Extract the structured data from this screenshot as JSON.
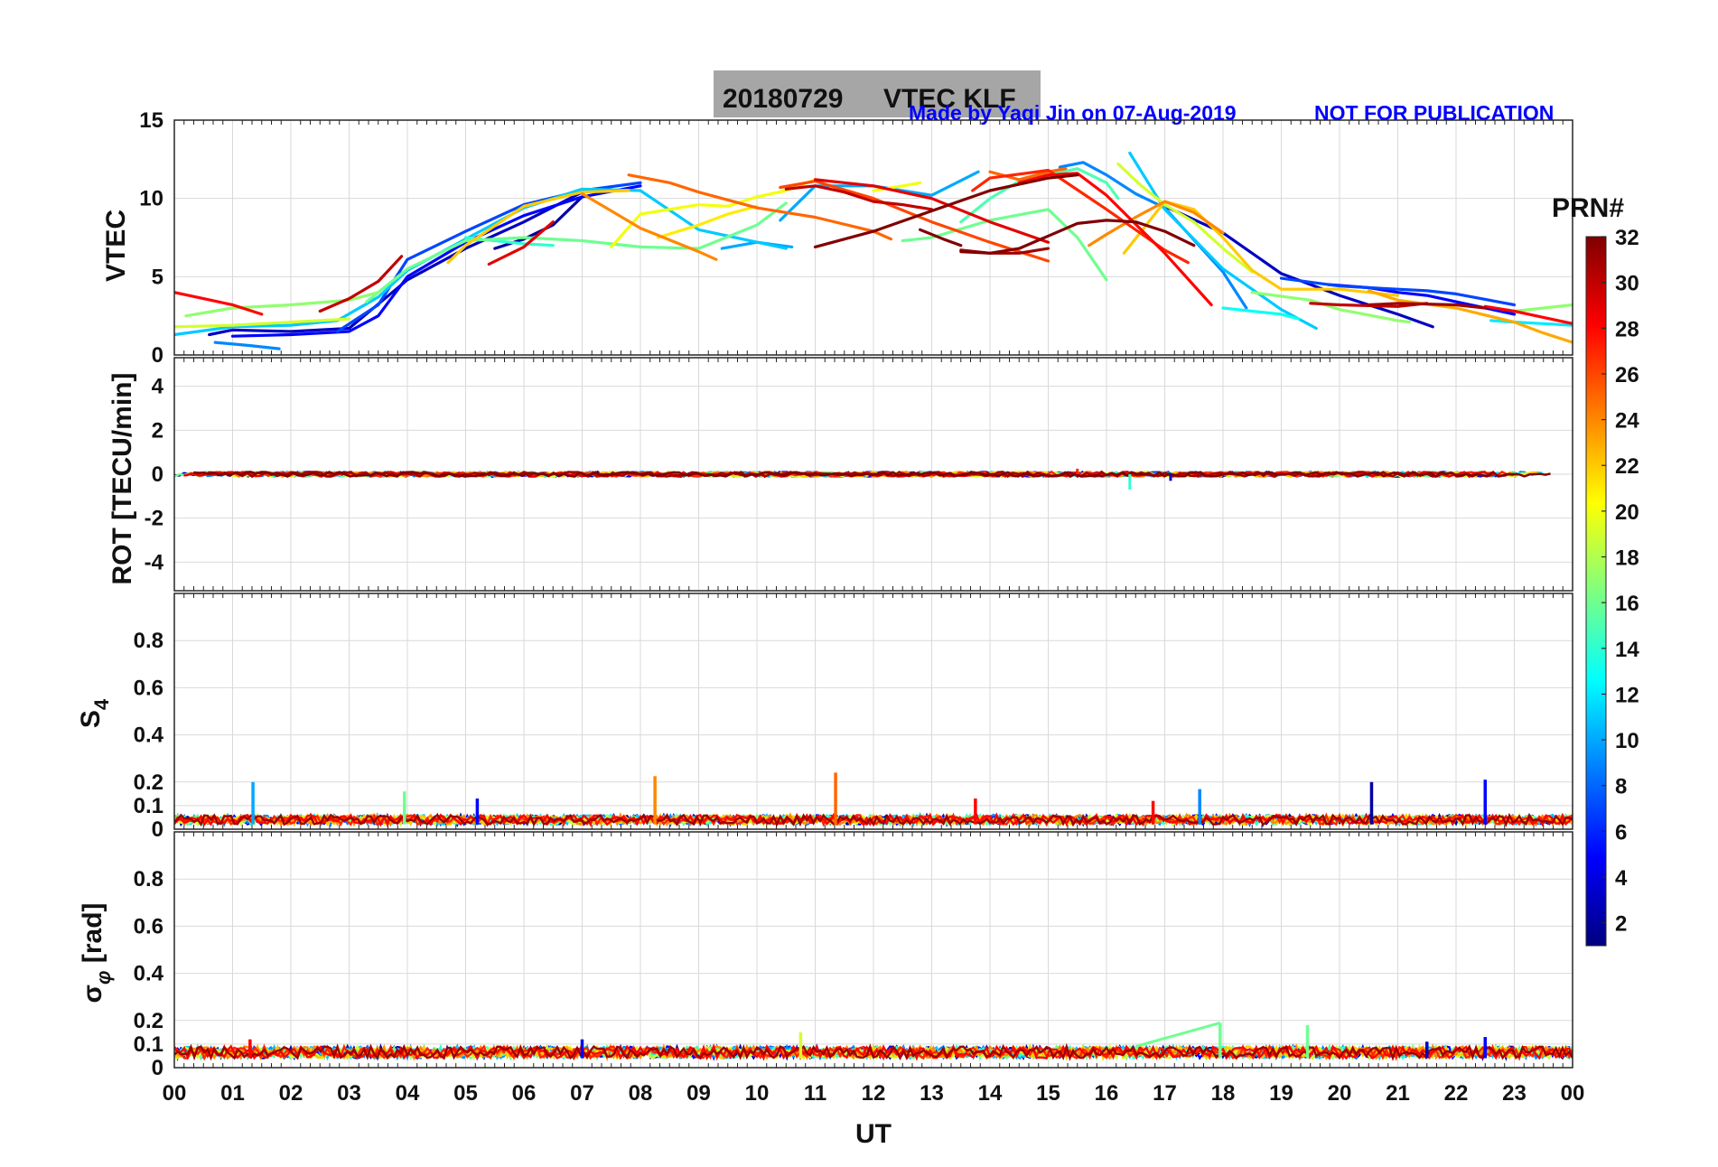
{
  "title": {
    "date": "20180729",
    "label": "VTEC  KLF",
    "credit": "Made by Yaqi Jin on 07-Aug-2019",
    "notice": "NOT FOR PUBLICATION"
  },
  "colorbar": {
    "title": "PRN#",
    "ticks": [
      "2",
      "4",
      "6",
      "8",
      "10",
      "12",
      "14",
      "16",
      "18",
      "20",
      "22",
      "24",
      "26",
      "28",
      "30",
      "32"
    ],
    "range": [
      1,
      32
    ],
    "colormap": "jet",
    "colors": [
      "#00007F",
      "#0000FF",
      "#007FFF",
      "#00FFFF",
      "#7FFF7F",
      "#FFFF00",
      "#FF7F00",
      "#FF0000",
      "#7F0000"
    ]
  },
  "chart_data": [
    {
      "type": "line",
      "panel": "vtec",
      "ylabel": "VTEC",
      "xlabel": "",
      "xlim": [
        0,
        24
      ],
      "ylim": [
        0,
        15
      ],
      "yticks": [
        "0",
        "5",
        "10",
        "15"
      ],
      "series": [
        {
          "prn": 2,
          "x": [
            5.5,
            6,
            6.5,
            7
          ],
          "y": [
            6.8,
            7.4,
            8.3,
            10.1
          ]
        },
        {
          "prn": 3,
          "x": [
            0.6,
            1,
            2,
            3,
            4,
            5,
            6,
            7
          ],
          "y": [
            1.3,
            1.6,
            1.5,
            1.7,
            4.8,
            6.8,
            8.5,
            10.4
          ]
        },
        {
          "prn": 3,
          "x": [
            17,
            18,
            19,
            20,
            21,
            21.6
          ],
          "y": [
            9.5,
            7.8,
            5.2,
            3.8,
            2.6,
            1.8
          ]
        },
        {
          "prn": 5,
          "x": [
            1,
            2,
            3,
            3.5,
            4,
            5,
            6,
            7,
            8
          ],
          "y": [
            1.2,
            1.3,
            1.5,
            2.5,
            5.0,
            7.2,
            8.9,
            10.1,
            10.8
          ]
        },
        {
          "prn": 5,
          "x": [
            19.8,
            20.5,
            21,
            21.5,
            22,
            22.5,
            23
          ],
          "y": [
            4.5,
            4.3,
            4.0,
            3.8,
            3.4,
            3.0,
            2.6
          ]
        },
        {
          "prn": 7,
          "x": [
            2.8,
            3.5,
            4,
            5,
            6,
            7,
            8
          ],
          "y": [
            1.5,
            3.2,
            6.1,
            7.9,
            9.6,
            10.5,
            11.0
          ]
        },
        {
          "prn": 7,
          "x": [
            19,
            20,
            21,
            21.5,
            22,
            23
          ],
          "y": [
            4.9,
            4.4,
            4.2,
            4.1,
            3.9,
            3.2
          ]
        },
        {
          "prn": 9,
          "x": [
            0.7,
            1.3,
            1.8
          ],
          "y": [
            0.8,
            0.6,
            0.4
          ]
        },
        {
          "prn": 9,
          "x": [
            15.2,
            15.6,
            16,
            16.5,
            17,
            18,
            18.4
          ],
          "y": [
            12.0,
            12.3,
            11.5,
            10.3,
            9.4,
            5.3,
            3.0
          ]
        },
        {
          "prn": 10,
          "x": [
            9.4,
            10,
            10.6
          ],
          "y": [
            6.8,
            7.2,
            6.9
          ]
        },
        {
          "prn": 10,
          "x": [
            10.4,
            11,
            12,
            13,
            13.8
          ],
          "y": [
            8.6,
            10.8,
            10.8,
            10.2,
            11.7
          ]
        },
        {
          "prn": 11,
          "x": [
            0,
            1,
            2,
            2.8,
            3.5,
            4,
            5,
            6,
            7,
            8,
            9,
            10.5
          ],
          "y": [
            1.3,
            1.8,
            1.9,
            2.2,
            3.7,
            5.4,
            7.4,
            9.4,
            10.6,
            10.5,
            8.0,
            6.8
          ]
        },
        {
          "prn": 11,
          "x": [
            16.4,
            17,
            18,
            19,
            19.6
          ],
          "y": [
            12.9,
            9.3,
            5.5,
            2.9,
            1.7
          ]
        },
        {
          "prn": 12,
          "x": [
            22.6,
            23,
            23.5,
            24
          ],
          "y": [
            2.2,
            2.1,
            2.0,
            1.9
          ]
        },
        {
          "prn": 13,
          "x": [
            18,
            18.5,
            19,
            19.3
          ],
          "y": [
            3.0,
            2.8,
            2.6,
            2.3
          ]
        },
        {
          "prn": 14,
          "x": [
            5,
            5.5,
            6,
            6.5
          ],
          "y": [
            7.5,
            7.3,
            7.1,
            7.0
          ]
        },
        {
          "prn": 15,
          "x": [
            13.5,
            14,
            14.5,
            15,
            15.5,
            16,
            16.2
          ],
          "y": [
            8.5,
            10.0,
            11.1,
            11.5,
            11.9,
            11.0,
            10.0
          ]
        },
        {
          "prn": 16,
          "x": [
            3.3,
            4,
            5,
            6,
            7,
            8,
            9,
            10,
            10.5
          ],
          "y": [
            3.4,
            5.5,
            7.3,
            7.5,
            7.3,
            6.9,
            6.8,
            8.3,
            9.7
          ]
        },
        {
          "prn": 16,
          "x": [
            12.5,
            13,
            14,
            15,
            15.5,
            16
          ],
          "y": [
            7.3,
            7.5,
            8.6,
            9.3,
            7.5,
            4.8
          ]
        },
        {
          "prn": 17,
          "x": [
            0.2,
            1,
            2,
            3,
            3.5
          ],
          "y": [
            2.5,
            3.0,
            3.2,
            3.5,
            4.0
          ]
        },
        {
          "prn": 17,
          "x": [
            18.5,
            19.5,
            20,
            21,
            21.2
          ],
          "y": [
            4.0,
            3.5,
            2.9,
            2.2,
            2.1
          ]
        },
        {
          "prn": 17,
          "x": [
            23,
            23.5,
            24
          ],
          "y": [
            2.8,
            3.0,
            3.2
          ]
        },
        {
          "prn": 19,
          "x": [
            0,
            1,
            2,
            3
          ],
          "y": [
            1.8,
            1.9,
            2.1,
            2.3
          ]
        },
        {
          "prn": 19,
          "x": [
            16.2,
            16.6,
            17,
            17.5,
            18,
            18.5
          ],
          "y": [
            12.2,
            10.8,
            9.6,
            8.5,
            6.8,
            5.3
          ]
        },
        {
          "prn": 20,
          "x": [
            7.5,
            8,
            9,
            9.5,
            10,
            10.5,
            11
          ],
          "y": [
            6.9,
            9.0,
            9.6,
            9.5,
            10.1,
            10.5,
            11.2
          ]
        },
        {
          "prn": 20,
          "x": [
            12,
            12.5,
            12.8
          ],
          "y": [
            10.5,
            10.8,
            11.0
          ]
        },
        {
          "prn": 21,
          "x": [
            8.3,
            9,
            9.5,
            10
          ],
          "y": [
            7.5,
            8.3,
            9.0,
            9.5
          ]
        },
        {
          "prn": 22,
          "x": [
            4.7,
            5,
            6,
            7,
            7.8
          ],
          "y": [
            5.9,
            7.0,
            9.5,
            10.4,
            10.5
          ]
        },
        {
          "prn": 22,
          "x": [
            16.3,
            17,
            17.5,
            18,
            18.5,
            19,
            20,
            21
          ],
          "y": [
            6.5,
            9.8,
            9.3,
            7.5,
            5.4,
            4.2,
            4.2,
            3.8
          ]
        },
        {
          "prn": 23,
          "x": [
            20.5,
            21,
            22,
            23,
            23.5,
            24
          ],
          "y": [
            4.1,
            3.5,
            3.0,
            2.1,
            1.4,
            0.8
          ]
        },
        {
          "prn": 24,
          "x": [
            7,
            7.5,
            8,
            9,
            9.3
          ],
          "y": [
            10.3,
            9.2,
            8.1,
            6.6,
            6.1
          ]
        },
        {
          "prn": 24,
          "x": [
            15.7,
            16,
            16.5,
            17,
            17.5,
            18
          ],
          "y": [
            7.0,
            7.7,
            8.8,
            9.8,
            9.1,
            7.8
          ]
        },
        {
          "prn": 25,
          "x": [
            7.8,
            8.5,
            9,
            10,
            11,
            12,
            12.3
          ],
          "y": [
            11.5,
            11.0,
            10.4,
            9.4,
            8.8,
            7.9,
            7.4
          ]
        },
        {
          "prn": 25,
          "x": [
            14,
            14.5,
            15,
            15.3
          ],
          "y": [
            11.7,
            11.2,
            11.7,
            11.9
          ]
        },
        {
          "prn": 26,
          "x": [
            10.4,
            11,
            12,
            13,
            14,
            15
          ],
          "y": [
            10.7,
            11.1,
            10.0,
            8.5,
            7.2,
            6.0
          ]
        },
        {
          "prn": 27,
          "x": [
            13.7,
            14,
            15,
            16,
            17,
            17.4
          ],
          "y": [
            10.5,
            11.3,
            11.8,
            9.3,
            6.7,
            5.9
          ]
        },
        {
          "prn": 28,
          "x": [
            0,
            0.5,
            1,
            1.5
          ],
          "y": [
            4.0,
            3.6,
            3.2,
            2.6
          ]
        },
        {
          "prn": 28,
          "x": [
            14.5,
            15,
            15.5,
            16,
            17,
            17.8
          ],
          "y": [
            11.0,
            11.5,
            11.6,
            10.2,
            6.5,
            3.2
          ]
        },
        {
          "prn": 28,
          "x": [
            22.5,
            23,
            23.5,
            24
          ],
          "y": [
            3.1,
            2.8,
            2.4,
            2.0
          ]
        },
        {
          "prn": 29,
          "x": [
            5.4,
            6,
            6.5
          ],
          "y": [
            5.8,
            6.9,
            8.5
          ]
        },
        {
          "prn": 29,
          "x": [
            11,
            11.5,
            12,
            13,
            14,
            15
          ],
          "y": [
            11.2,
            11.0,
            10.8,
            10.0,
            8.5,
            7.2
          ]
        },
        {
          "prn": 30,
          "x": [
            2.5,
            3,
            3.5,
            3.9
          ],
          "y": [
            2.8,
            3.6,
            4.7,
            6.3
          ]
        },
        {
          "prn": 30,
          "x": [
            10.5,
            11,
            11.5,
            12,
            12.5,
            13
          ],
          "y": [
            10.6,
            10.8,
            10.4,
            9.8,
            9.6,
            9.3
          ]
        },
        {
          "prn": 30,
          "x": [
            19.5,
            20,
            21,
            21.5
          ],
          "y": [
            3.3,
            3.2,
            3.1,
            3.3
          ]
        },
        {
          "prn": 31,
          "x": [
            20.5,
            21,
            22,
            22.5
          ],
          "y": [
            3.2,
            3.3,
            3.2,
            3.0
          ]
        },
        {
          "prn": 31,
          "x": [
            13.5,
            14,
            14.5,
            15
          ],
          "y": [
            6.7,
            6.5,
            6.5,
            6.8
          ]
        },
        {
          "prn": 32,
          "x": [
            11,
            12,
            13,
            14,
            15,
            15.5
          ],
          "y": [
            6.9,
            7.9,
            9.2,
            10.5,
            11.3,
            11.5
          ]
        },
        {
          "prn": 32,
          "x": [
            13.5,
            14,
            14.5,
            15,
            15.5,
            16,
            16.5,
            17,
            17.5
          ],
          "y": [
            6.6,
            6.5,
            6.8,
            7.6,
            8.4,
            8.6,
            8.5,
            7.9,
            7.0
          ]
        },
        {
          "prn": 32,
          "x": [
            12.8,
            13.2,
            13.5
          ],
          "y": [
            8.0,
            7.4,
            7.0
          ]
        }
      ]
    },
    {
      "type": "scatter",
      "panel": "rot",
      "ylabel": "ROT [TECU/min]",
      "xlim": [
        0,
        24
      ],
      "ylim": [
        -5.3,
        5.3
      ],
      "yticks": [
        "-4",
        "-2",
        "0",
        "2",
        "4"
      ],
      "summary": "Rate of TEC across all PRNs stays within about +/-0.3 TECU/min between 00 and 24 UT, with a small dip to about -0.7 near 16.4 UT.",
      "envelope": {
        "x_start": 0,
        "x_end": 23.8,
        "min": -0.7,
        "max": 0.3
      },
      "spikes": [
        {
          "x": 16.4,
          "y": -0.7,
          "prn": 14
        },
        {
          "x": 17.1,
          "y": -0.3,
          "prn": 3
        },
        {
          "x": 15.5,
          "y": 0.25,
          "prn": 27
        }
      ]
    },
    {
      "type": "scatter",
      "panel": "s4",
      "ylabel": "S4",
      "xlim": [
        0,
        24
      ],
      "ylim": [
        0,
        1
      ],
      "yticks": [
        "0",
        "0.1",
        "0.2",
        "0.4",
        "0.6",
        "0.8"
      ],
      "summary": "Amplitude scintillation index S4 for all PRNs, background about 0.02-0.06.",
      "background": {
        "min": 0.02,
        "max": 0.06
      },
      "spikes": [
        {
          "x": 1.35,
          "y": 0.2,
          "prn": 10
        },
        {
          "x": 3.95,
          "y": 0.16,
          "prn": 16
        },
        {
          "x": 5.2,
          "y": 0.13,
          "prn": 5
        },
        {
          "x": 8.25,
          "y": 0.225,
          "prn": 24
        },
        {
          "x": 11.35,
          "y": 0.24,
          "prn": 25
        },
        {
          "x": 13.75,
          "y": 0.13,
          "prn": 28
        },
        {
          "x": 16.8,
          "y": 0.12,
          "prn": 28
        },
        {
          "x": 17.6,
          "y": 0.17,
          "prn": 9
        },
        {
          "x": 20.55,
          "y": 0.2,
          "prn": 2
        },
        {
          "x": 22.5,
          "y": 0.21,
          "prn": 5
        }
      ]
    },
    {
      "type": "scatter",
      "panel": "sigma_phi",
      "ylabel": "σ φ [rad]",
      "xlabel": "UT",
      "xlim": [
        0,
        24
      ],
      "ylim": [
        0,
        1
      ],
      "yticks": [
        "0",
        "0.1",
        "0.2",
        "0.4",
        "0.6",
        "0.8"
      ],
      "xticks": [
        "00",
        "01",
        "02",
        "03",
        "04",
        "05",
        "06",
        "07",
        "08",
        "09",
        "10",
        "11",
        "12",
        "13",
        "14",
        "15",
        "16",
        "17",
        "18",
        "19",
        "20",
        "21",
        "22",
        "23",
        "00"
      ],
      "summary": "Phase scintillation index sigma-phi for all PRNs, background about 0.04-0.09 rad.",
      "background": {
        "min": 0.04,
        "max": 0.09
      },
      "spikes": [
        {
          "x": 1.3,
          "y": 0.12,
          "prn": 28
        },
        {
          "x": 7.0,
          "y": 0.12,
          "prn": 5
        },
        {
          "x": 10.75,
          "y": 0.15,
          "prn": 19
        },
        {
          "x": 17.95,
          "y": 0.19,
          "prn": 16
        },
        {
          "x": 19.45,
          "y": 0.18,
          "prn": 16
        },
        {
          "x": 21.5,
          "y": 0.11,
          "prn": 3
        },
        {
          "x": 22.5,
          "y": 0.13,
          "prn": 5
        }
      ],
      "ramps": [
        {
          "x": [
            16.5,
            17.95
          ],
          "y": [
            0.09,
            0.19
          ],
          "prn": 16
        }
      ]
    }
  ]
}
